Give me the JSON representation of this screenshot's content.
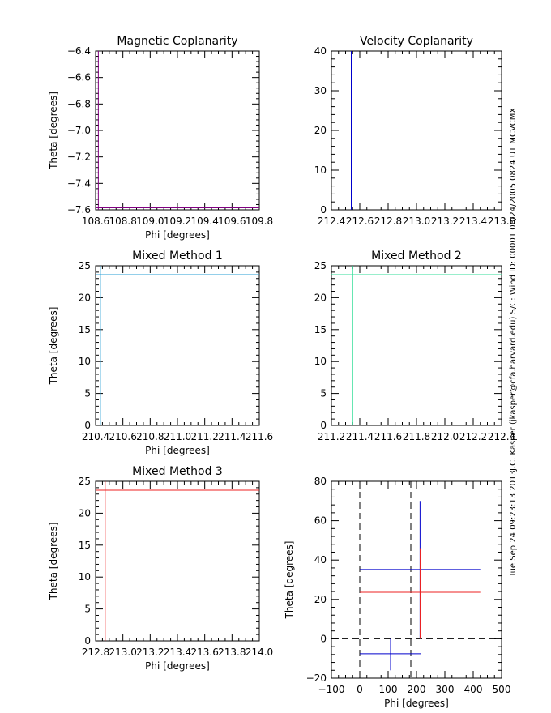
{
  "side_text": {
    "left": "Tue Sep 24 09:23:13 2013",
    "right": "J.C. Kasper (jkasper@cfa.harvard.edu)  S/C: Wind ID: 00001 08/24/2005  0824 UT MCVCMX"
  },
  "chart_data": [
    {
      "type": "line",
      "title": "Magnetic Coplanarity",
      "xlabel": "Phi [degrees]",
      "ylabel": "Theta [degrees]",
      "xlim": [
        108.6,
        109.8
      ],
      "ylim": [
        -7.6,
        -6.4
      ],
      "xticks": [
        108.6,
        108.8,
        109.0,
        109.2,
        109.4,
        109.6,
        109.8
      ],
      "xtick_labels": [
        "108.6",
        "108.8",
        "109.0",
        "109.2",
        "109.4",
        "109.6",
        "109.8"
      ],
      "yticks": [
        -7.6,
        -7.4,
        -7.2,
        -7.0,
        -6.8,
        -6.6,
        -6.4
      ],
      "ytick_labels": [
        "−7.6",
        "−7.4",
        "−7.2",
        "−7.0",
        "−6.8",
        "−6.6",
        "−6.4"
      ],
      "color": "#800080",
      "vline_x": 108.62,
      "hline_y": -7.585
    },
    {
      "type": "line",
      "title": "Velocity Coplanarity",
      "xlabel": "",
      "ylabel": "",
      "xlim": [
        212.4,
        213.6
      ],
      "ylim": [
        0,
        40
      ],
      "xticks": [
        212.4,
        212.6,
        212.8,
        213.0,
        213.2,
        213.4,
        213.6
      ],
      "xtick_labels": [
        "212.4",
        "212.6",
        "212.8",
        "213.0",
        "213.2",
        "213.4",
        "213.6"
      ],
      "yticks": [
        0,
        10,
        20,
        30,
        40
      ],
      "ytick_labels": [
        "0",
        "10",
        "20",
        "30",
        "40"
      ],
      "color": "#0000cc",
      "vline_x": 212.54,
      "hline_y": 35.2
    },
    {
      "type": "line",
      "title": "Mixed Method 1",
      "xlabel": "Phi [degrees]",
      "ylabel": "Theta [degrees]",
      "xlim": [
        210.4,
        211.6
      ],
      "ylim": [
        0,
        25
      ],
      "xticks": [
        210.4,
        210.6,
        210.8,
        211.0,
        211.2,
        211.4,
        211.6
      ],
      "xtick_labels": [
        "210.4",
        "210.6",
        "210.8",
        "211.0",
        "211.2",
        "211.4",
        "211.6"
      ],
      "yticks": [
        0,
        5,
        10,
        15,
        20,
        25
      ],
      "ytick_labels": [
        "0",
        "5",
        "10",
        "15",
        "20",
        "25"
      ],
      "color": "#2a9fd6",
      "vline_x": 210.435,
      "hline_y": 23.6
    },
    {
      "type": "line",
      "title": "Mixed Method 2",
      "xlabel": "",
      "ylabel": "",
      "xlim": [
        211.2,
        212.4
      ],
      "ylim": [
        0,
        25
      ],
      "xticks": [
        211.2,
        211.4,
        211.6,
        211.8,
        212.0,
        212.2,
        212.4
      ],
      "xtick_labels": [
        "211.2",
        "211.4",
        "211.6",
        "211.8",
        "212.0",
        "212.2",
        "212.4"
      ],
      "yticks": [
        0,
        5,
        10,
        15,
        20,
        25
      ],
      "ytick_labels": [
        "0",
        "5",
        "10",
        "15",
        "20",
        "25"
      ],
      "color": "#33dd99",
      "vline_x": 211.35,
      "hline_y": 23.6
    },
    {
      "type": "line",
      "title": "Mixed Method 3",
      "xlabel": "Phi [degrees]",
      "ylabel": "Theta [degrees]",
      "xlim": [
        212.8,
        214.0
      ],
      "ylim": [
        0,
        25
      ],
      "xticks": [
        212.8,
        213.0,
        213.2,
        213.4,
        213.6,
        213.8,
        214.0
      ],
      "xtick_labels": [
        "212.8",
        "213.0",
        "213.2",
        "213.4",
        "213.6",
        "213.8",
        "214.0"
      ],
      "yticks": [
        0,
        5,
        10,
        15,
        20,
        25
      ],
      "ytick_labels": [
        "0",
        "5",
        "10",
        "15",
        "20",
        "25"
      ],
      "color": "#ee2222",
      "vline_x": 212.87,
      "hline_y": 23.6
    },
    {
      "type": "line",
      "title": "",
      "xlabel": "Phi [degrees]",
      "ylabel": "Theta [degrees]",
      "xlim": [
        -100,
        500
      ],
      "ylim": [
        -20,
        80
      ],
      "xticks": [
        -100,
        0,
        100,
        200,
        300,
        400,
        500
      ],
      "xtick_labels": [
        "−100",
        "0",
        "100",
        "200",
        "300",
        "400",
        "500"
      ],
      "yticks": [
        -20,
        0,
        20,
        40,
        60,
        80
      ],
      "ytick_labels": [
        "−20",
        "0",
        "20",
        "40",
        "60",
        "80"
      ],
      "dashed_vlines": [
        0,
        180
      ],
      "dashed_hlines": [
        0
      ],
      "crosses": [
        {
          "color": "#0000cc",
          "x": 108.6,
          "y": -7.6,
          "x_range": [
            0,
            217
          ],
          "y_range": [
            -16,
            0
          ]
        },
        {
          "color": "#0000cc",
          "x": 212.5,
          "y": 35.2,
          "x_range": [
            0,
            425
          ],
          "y_range": [
            0,
            70
          ]
        },
        {
          "color": "#ee2222",
          "x": 212.9,
          "y": 23.6,
          "x_range": [
            0,
            425
          ],
          "y_range": [
            0,
            46
          ]
        }
      ]
    }
  ]
}
